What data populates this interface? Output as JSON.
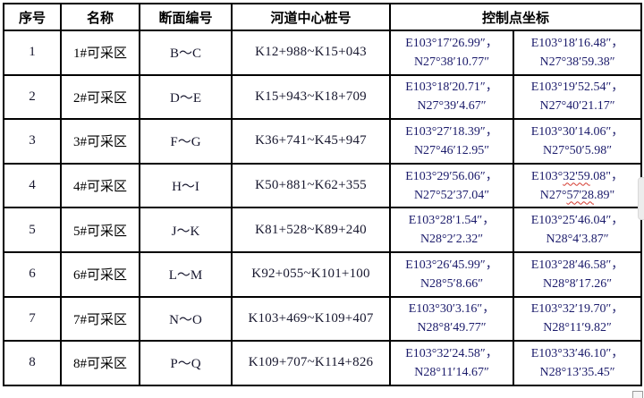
{
  "colors": {
    "table_border": "#000000",
    "header_text": "#000000",
    "latin_text": "#17172e",
    "coordinate_text": "#1b1b6b",
    "spellcheck_underline": "#d43a2f"
  },
  "table": {
    "headers": {
      "no": "序号",
      "name": "名称",
      "section": "断面编号",
      "stake": "河道中心桩号",
      "coords": "控制点坐标"
    },
    "rows": [
      {
        "no": "1",
        "name": "1#可采区",
        "section": "B～C",
        "stake": "K12+988~K15+043",
        "coord1": [
          "E103°17′26.99″，",
          "N27°38′10.77″"
        ],
        "coord2": [
          "E103°18′16.48″，",
          "N27°38′59.38″"
        ]
      },
      {
        "no": "2",
        "name": "2#可采区",
        "section": "D～E",
        "stake": "K15+943~K18+709",
        "coord1": [
          "E103°18′20.71″，",
          "N27°39′4.67″"
        ],
        "coord2": [
          "E103°19′52.54″，",
          "N27°40′21.17″"
        ]
      },
      {
        "no": "3",
        "name": "3#可采区",
        "section": "F～G",
        "stake": "K36+741~K45+947",
        "coord1": [
          "E103°27′18.39″，",
          "N27°46′12.95″"
        ],
        "coord2": [
          "E103°30′14.06″，",
          "N27°50′5.98″"
        ]
      },
      {
        "no": "4",
        "name": "4#可采区",
        "section": "H～I",
        "stake": "K50+881~K62+355",
        "coord1": [
          "E103°29′56.06″，",
          "N27°52′37.04″"
        ],
        "coord2": [
          "E103°⟦32'59⟧.08\"，",
          "N27°⟦57'28⟧.89\""
        ]
      },
      {
        "no": "5",
        "name": "5#可采区",
        "section": "J～K",
        "stake": "K81+528~K89+240",
        "coord1": [
          "E103°28′1.54″，",
          "N28°2′2.32″"
        ],
        "coord2": [
          "E103°25′46.04″，",
          "N28°4′3.87″"
        ]
      },
      {
        "no": "6",
        "name": "6#可采区",
        "section": "L～M",
        "stake": "K92+055~K101+100",
        "coord1": [
          "E103°26′45.99″，",
          "N28°5′8.66″"
        ],
        "coord2": [
          "E103°28′46.58″，",
          "N28°8′17.26″"
        ]
      },
      {
        "no": "7",
        "name": "7#可采区",
        "section": "N～O",
        "stake": "K103+469~K109+407",
        "coord1": [
          "E103°30′3.16″，",
          "N28°8′49.77″"
        ],
        "coord2": [
          "E103°32′19.70″，",
          "N28°11′9.82″"
        ]
      },
      {
        "no": "8",
        "name": "8#可采区",
        "section": "P～Q",
        "stake": "K109+707~K114+826",
        "coord1": [
          "E103°32′24.58″，",
          "N28°11′14.67″"
        ],
        "coord2": [
          "E103°33′46.10″，",
          "N28°13′35.45″"
        ]
      }
    ]
  }
}
